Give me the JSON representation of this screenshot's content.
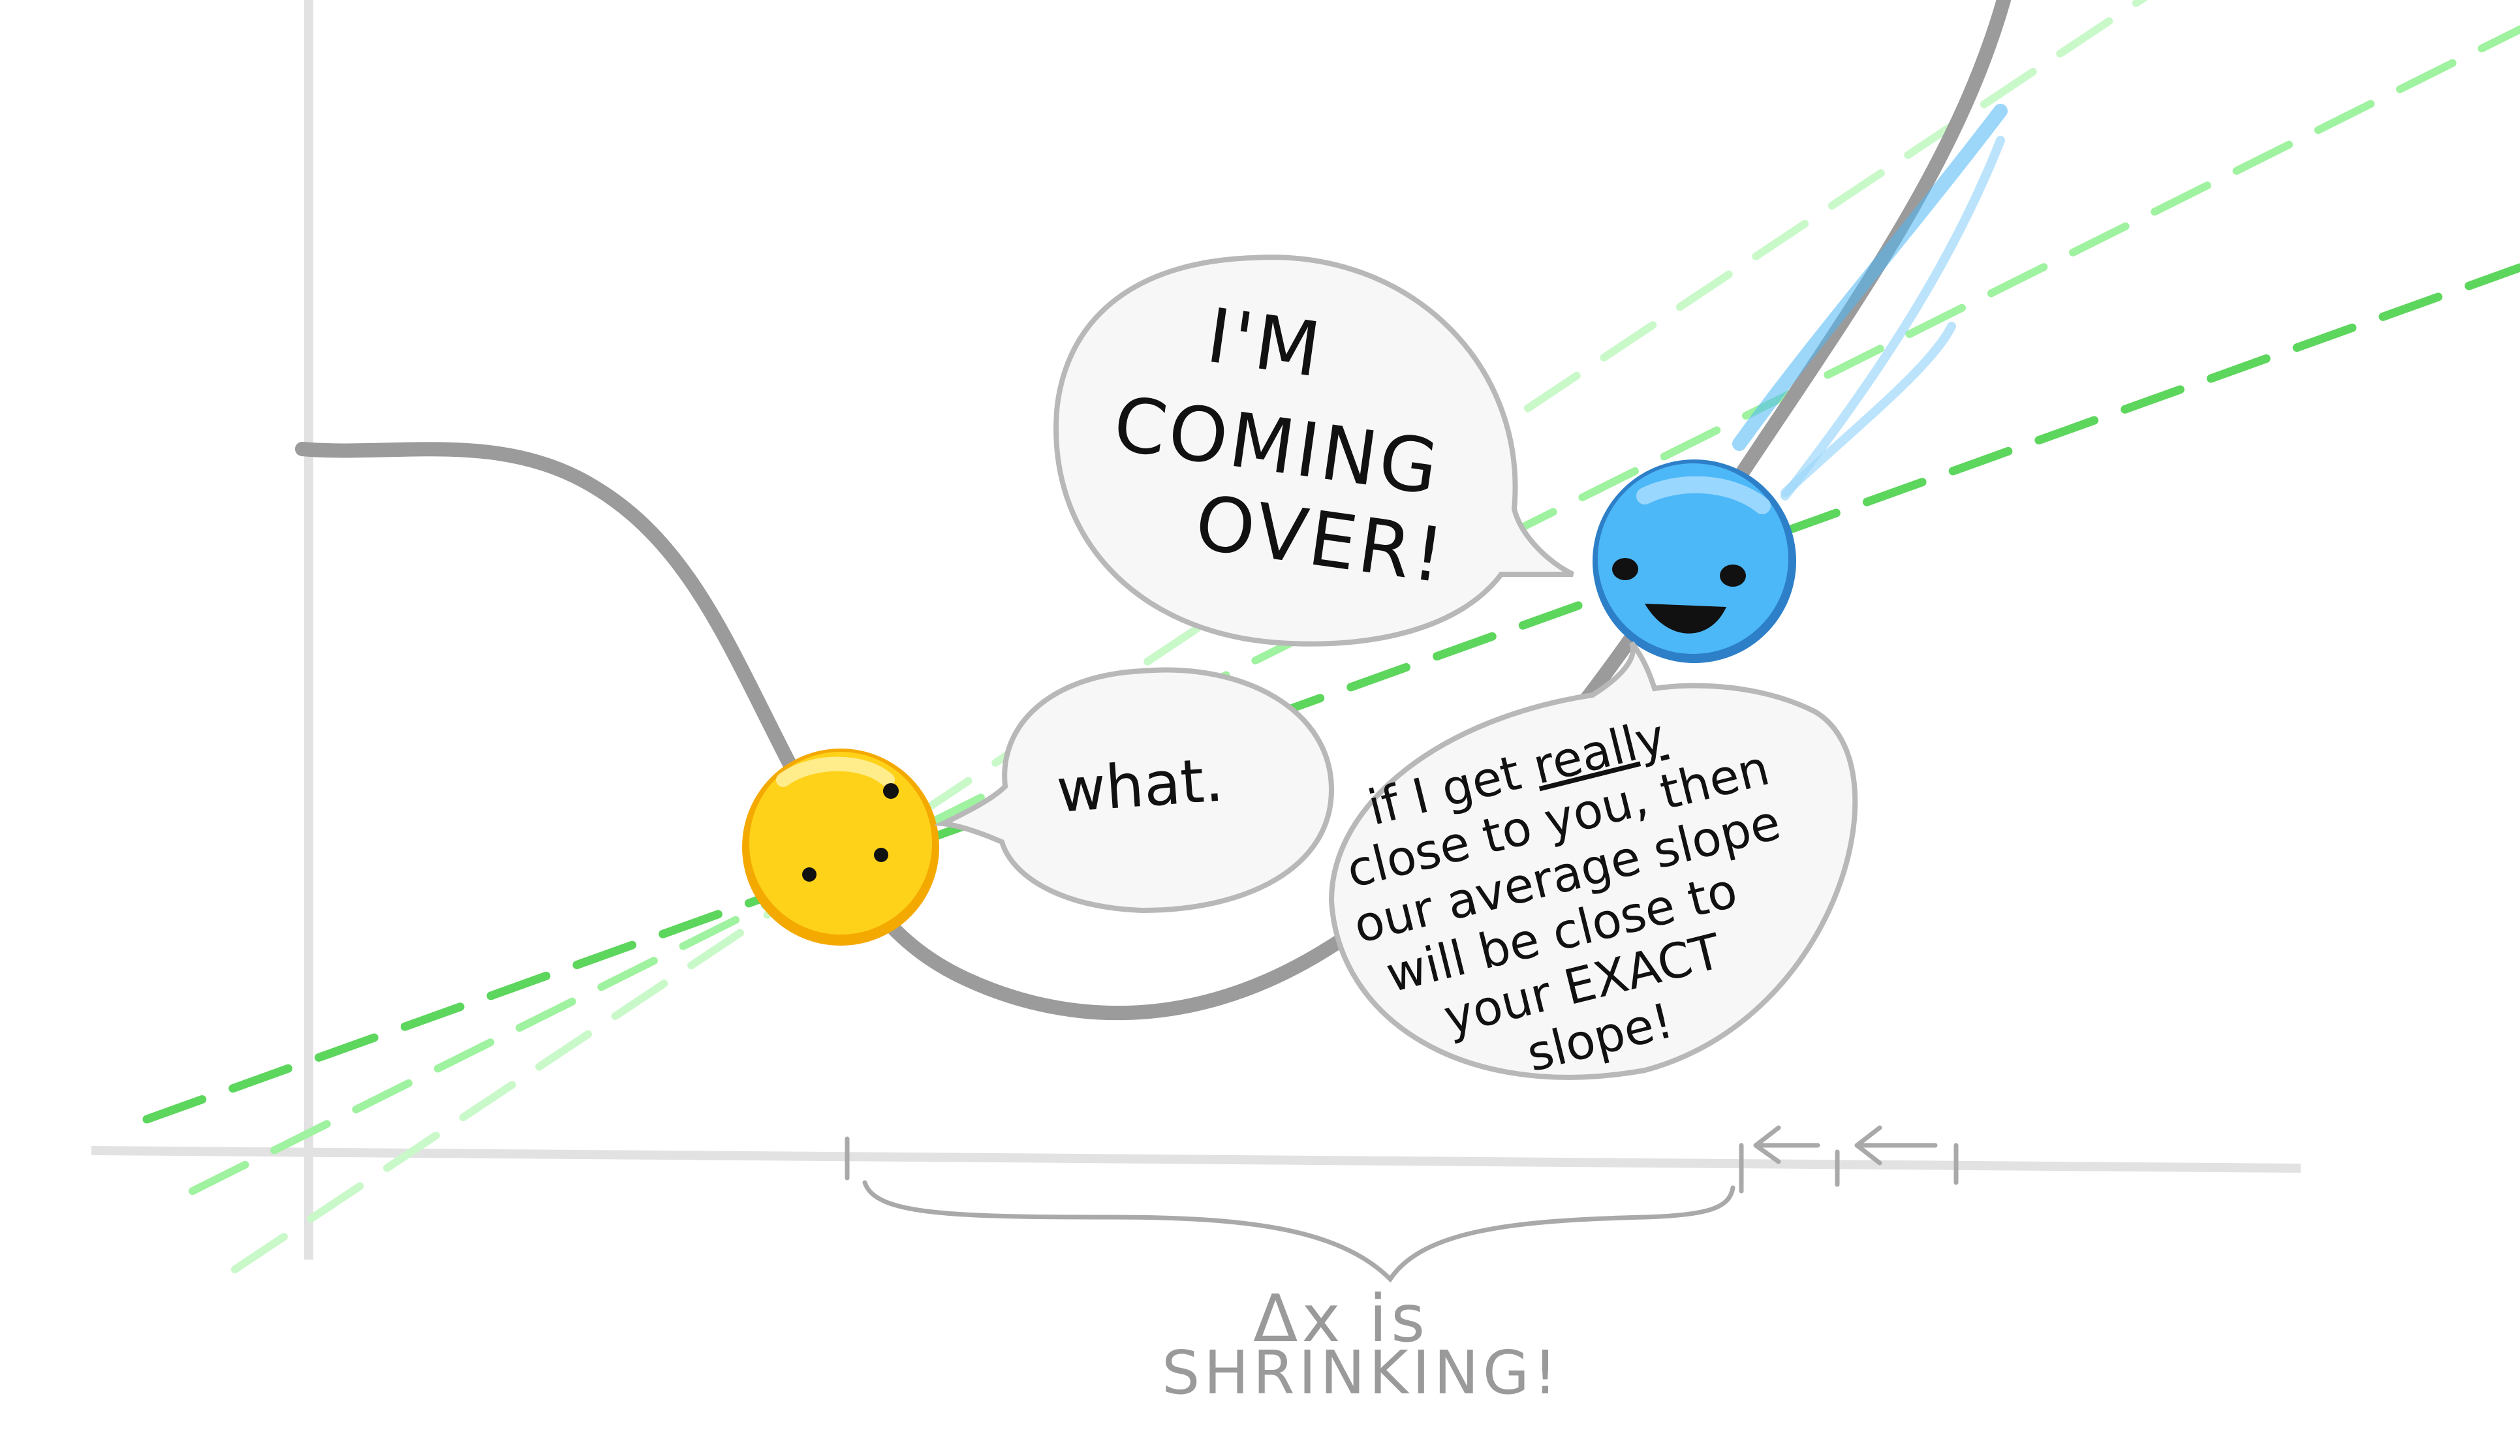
{
  "bubbles": {
    "blue_line1": "I'M",
    "blue_line2": "COMING",
    "blue_line3": "OVER!",
    "yellow_text": "what.",
    "explain_line1_pre": "if I get ",
    "explain_line1_emph": "really",
    "explain_line2": "close to you, then",
    "explain_line3": "our average slope",
    "explain_line4": "will be close to",
    "explain_line5": "your EXACT",
    "explain_line6": "slope!"
  },
  "caption": {
    "line1": "Δx  is",
    "line2": "SHRINKING!"
  },
  "colors": {
    "curve": "#9b9b9b",
    "axis": "#e2e2e2",
    "secant_dark": "#5cd65c",
    "secant_mid": "#9ff29f",
    "secant_light": "#c9f9c9",
    "yellow_ball": "#ffd21a",
    "blue_ball": "#4db8f7",
    "speed_lines": "#4db8f7",
    "bubble_stroke": "#b8b8b8",
    "bubble_fill": "#f7f7f7",
    "caption_text": "#9a9a9a"
  }
}
